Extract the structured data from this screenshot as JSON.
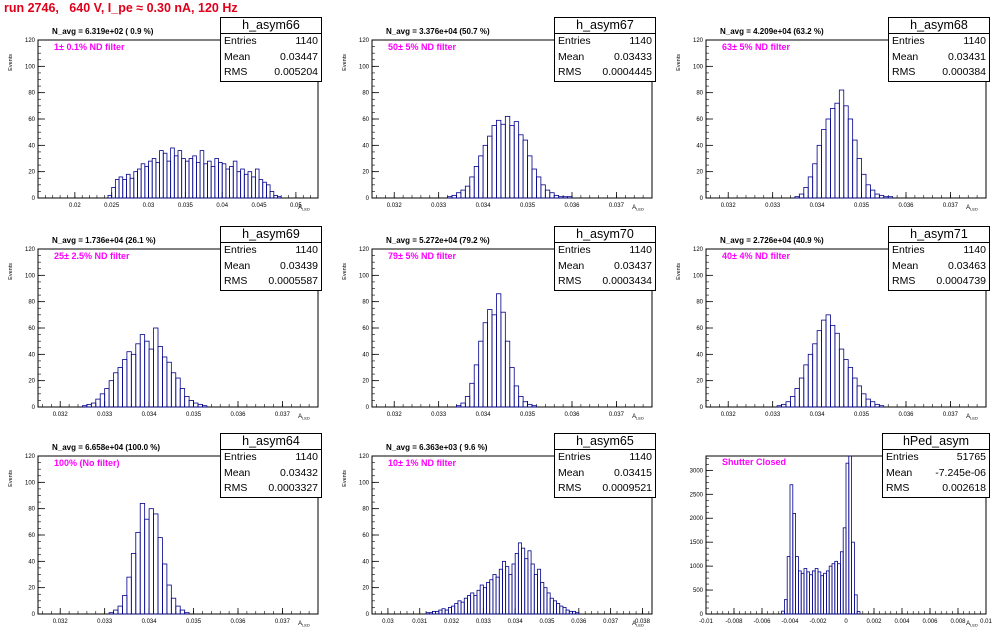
{
  "title": "run 2746,   640 V, I_pe ≈ 0.30 nA, 120 Hz",
  "colors": {
    "title": "#e0001a",
    "histogram": "#00008b",
    "annotation": "#ff00ff",
    "axis": "#000000"
  },
  "stats_labels": {
    "entries": "Entries",
    "mean": "Mean",
    "rms": "RMS"
  },
  "ylabel": "Events",
  "chart_data": [
    {
      "type": "histogram",
      "name": "h_asym66",
      "xlabel": "A_{LED}",
      "ylabel": "Events",
      "xlim": [
        0.015,
        0.053
      ],
      "ylim": [
        0,
        120
      ],
      "xticks": [
        0.02,
        0.025,
        0.03,
        0.035,
        0.04,
        0.045,
        0.05
      ],
      "xtick_labels": [
        "0.02",
        "0.025",
        "0.03",
        "0.035",
        "0.04",
        "0.045",
        "0.05"
      ],
      "yticks": [
        0,
        20,
        40,
        60,
        80,
        100,
        120
      ],
      "navg": "N_avg = 6.319e+02 ( 0.9 %)",
      "filter": "1± 0.1% ND filter",
      "stats": {
        "entries": "1140",
        "mean": "0.03447",
        "rms": "0.005204"
      },
      "bin_start": 0.0245,
      "bin_width": 0.0005,
      "counts": [
        2,
        8,
        14,
        16,
        14,
        18,
        15,
        20,
        22,
        26,
        24,
        28,
        30,
        27,
        36,
        34,
        28,
        38,
        32,
        36,
        30,
        28,
        30,
        32,
        27,
        36,
        26,
        28,
        24,
        30,
        27,
        26,
        22,
        24,
        28,
        20,
        22,
        18,
        20,
        16,
        22,
        14,
        12,
        10,
        5,
        2,
        1
      ]
    },
    {
      "type": "histogram",
      "name": "h_asym67",
      "xlabel": "A_{LED}",
      "ylabel": "Events",
      "xlim": [
        0.0315,
        0.0378
      ],
      "ylim": [
        0,
        120
      ],
      "xticks": [
        0.032,
        0.033,
        0.034,
        0.035,
        0.036,
        0.037
      ],
      "xtick_labels": [
        "0.032",
        "0.033",
        "0.034",
        "0.035",
        "0.036",
        "0.037"
      ],
      "yticks": [
        0,
        20,
        40,
        60,
        80,
        100,
        120
      ],
      "navg": "N_avg = 3.376e+04 (50.7 %)",
      "filter": "50± 5% ND filter",
      "stats": {
        "entries": "1140",
        "mean": "0.03433",
        "rms": "0.0004445"
      },
      "bin_start": 0.0332,
      "bin_width": 0.0001,
      "counts": [
        1,
        2,
        4,
        6,
        9,
        16,
        24,
        32,
        40,
        47,
        55,
        59,
        56,
        62,
        55,
        58,
        48,
        44,
        32,
        22,
        16,
        10,
        6,
        4,
        2,
        1,
        1,
        1
      ]
    },
    {
      "type": "histogram",
      "name": "h_asym68",
      "xlabel": "A_{LED}",
      "ylabel": "Events",
      "xlim": [
        0.0315,
        0.0378
      ],
      "ylim": [
        0,
        120
      ],
      "xticks": [
        0.032,
        0.033,
        0.034,
        0.035,
        0.036,
        0.037
      ],
      "xtick_labels": [
        "0.032",
        "0.033",
        "0.034",
        "0.035",
        "0.036",
        "0.037"
      ],
      "yticks": [
        0,
        20,
        40,
        60,
        80,
        100,
        120
      ],
      "navg": "N_avg = 4.209e+04 (63.2 %)",
      "filter": "63± 5% ND filter",
      "stats": {
        "entries": "1140",
        "mean": "0.03431",
        "rms": "0.000384"
      },
      "bin_start": 0.0335,
      "bin_width": 0.0001,
      "counts": [
        1,
        3,
        8,
        16,
        26,
        40,
        52,
        60,
        68,
        72,
        82,
        70,
        60,
        44,
        30,
        18,
        10,
        6,
        3,
        2,
        1,
        1
      ]
    },
    {
      "type": "histogram",
      "name": "h_asym69",
      "xlabel": "A_{LED}",
      "ylabel": "Events",
      "xlim": [
        0.0315,
        0.0378
      ],
      "ylim": [
        0,
        120
      ],
      "xticks": [
        0.032,
        0.033,
        0.034,
        0.035,
        0.036,
        0.037
      ],
      "xtick_labels": [
        "0.032",
        "0.033",
        "0.034",
        "0.035",
        "0.036",
        "0.037"
      ],
      "yticks": [
        0,
        20,
        40,
        60,
        80,
        100,
        120
      ],
      "navg": "N_avg = 1.736e+04 (26.1 %)",
      "filter": "25± 2.5% ND filter",
      "stats": {
        "entries": "1140",
        "mean": "0.03439",
        "rms": "0.0005587"
      },
      "bin_start": 0.0325,
      "bin_width": 0.0001,
      "counts": [
        1,
        2,
        3,
        6,
        10,
        14,
        20,
        26,
        30,
        36,
        42,
        40,
        48,
        55,
        50,
        44,
        60,
        46,
        38,
        34,
        26,
        22,
        14,
        8,
        5,
        3,
        2,
        1
      ]
    },
    {
      "type": "histogram",
      "name": "h_asym70",
      "xlabel": "A_{LED}",
      "ylabel": "Events",
      "xlim": [
        0.0315,
        0.0378
      ],
      "ylim": [
        0,
        120
      ],
      "xticks": [
        0.032,
        0.033,
        0.034,
        0.035,
        0.036,
        0.037
      ],
      "xtick_labels": [
        "0.032",
        "0.033",
        "0.034",
        "0.035",
        "0.036",
        "0.037"
      ],
      "yticks": [
        0,
        20,
        40,
        60,
        80,
        100,
        120
      ],
      "navg": "N_avg = 5.272e+04 (79.2 %)",
      "filter": "79± 5% ND filter",
      "stats": {
        "entries": "1140",
        "mean": "0.03437",
        "rms": "0.0003434"
      },
      "bin_start": 0.0334,
      "bin_width": 0.0001,
      "counts": [
        1,
        3,
        8,
        18,
        32,
        50,
        64,
        74,
        70,
        86,
        72,
        50,
        30,
        16,
        8,
        4,
        2,
        1
      ]
    },
    {
      "type": "histogram",
      "name": "h_asym71",
      "xlabel": "A_{LED}",
      "ylabel": "Events",
      "xlim": [
        0.0315,
        0.0378
      ],
      "ylim": [
        0,
        120
      ],
      "xticks": [
        0.032,
        0.033,
        0.034,
        0.035,
        0.036,
        0.037
      ],
      "xtick_labels": [
        "0.032",
        "0.033",
        "0.034",
        "0.035",
        "0.036",
        "0.037"
      ],
      "yticks": [
        0,
        20,
        40,
        60,
        80,
        100,
        120
      ],
      "navg": "N_avg = 2.726e+04 (40.9 %)",
      "filter": "40± 4% ND filter",
      "stats": {
        "entries": "1140",
        "mean": "0.03463",
        "rms": "0.0004739"
      },
      "bin_start": 0.0331,
      "bin_width": 0.0001,
      "counts": [
        1,
        2,
        4,
        8,
        14,
        22,
        32,
        40,
        48,
        58,
        66,
        70,
        62,
        56,
        44,
        36,
        30,
        22,
        16,
        10,
        6,
        4,
        2,
        1
      ]
    },
    {
      "type": "histogram",
      "name": "h_asym64",
      "xlabel": "A_{LED}",
      "ylabel": "Events",
      "xlim": [
        0.0315,
        0.0378
      ],
      "ylim": [
        0,
        120
      ],
      "xticks": [
        0.032,
        0.033,
        0.034,
        0.035,
        0.036,
        0.037
      ],
      "xtick_labels": [
        "0.032",
        "0.033",
        "0.034",
        "0.035",
        "0.036",
        "0.037"
      ],
      "yticks": [
        0,
        20,
        40,
        60,
        80,
        100,
        120
      ],
      "navg": "N_avg = 6.658e+04 (100.0 %)",
      "filter": "100% (No filter)",
      "stats": {
        "entries": "1140",
        "mean": "0.03432",
        "rms": "0.0003327"
      },
      "bin_start": 0.0331,
      "bin_width": 0.0001,
      "counts": [
        1,
        3,
        6,
        14,
        28,
        46,
        62,
        84,
        72,
        80,
        76,
        58,
        38,
        22,
        12,
        6,
        3,
        1
      ]
    },
    {
      "type": "histogram",
      "name": "h_asym65",
      "xlabel": "A_{LED}",
      "ylabel": "Events",
      "xlim": [
        0.0295,
        0.0383
      ],
      "ylim": [
        0,
        120
      ],
      "xticks": [
        0.03,
        0.031,
        0.032,
        0.033,
        0.034,
        0.035,
        0.036,
        0.037,
        0.038
      ],
      "xtick_labels": [
        "0.03",
        "0.031",
        "0.032",
        "0.033",
        "0.034",
        "0.035",
        "0.036",
        "0.037",
        "0.038"
      ],
      "yticks": [
        0,
        20,
        40,
        60,
        80,
        100,
        120
      ],
      "navg": "N_avg = 6.363e+03 ( 9.6 %)",
      "filter": "10± 1% ND filter",
      "stats": {
        "entries": "1140",
        "mean": "0.03415",
        "rms": "0.0009521"
      },
      "bin_start": 0.0312,
      "bin_width": 0.0001,
      "counts": [
        1,
        1,
        2,
        2,
        3,
        4,
        3,
        5,
        6,
        8,
        10,
        9,
        12,
        14,
        16,
        14,
        18,
        22,
        20,
        24,
        26,
        30,
        28,
        34,
        40,
        36,
        30,
        38,
        46,
        54,
        50,
        42,
        48,
        38,
        30,
        34,
        24,
        20,
        16,
        12,
        10,
        8,
        6,
        5,
        3,
        2,
        2,
        1
      ]
    },
    {
      "type": "histogram",
      "name": "hPed_asym",
      "xlabel": "A_{LED}",
      "ylabel": "",
      "xlim": [
        -0.01,
        0.01
      ],
      "ylim": [
        0,
        3300
      ],
      "xticks": [
        -0.01,
        -0.008,
        -0.006,
        -0.004,
        -0.002,
        0,
        0.002,
        0.004,
        0.006,
        0.008,
        0.01
      ],
      "xtick_labels": [
        "-0.01",
        "-0.008",
        "-0.006",
        "-0.004",
        "-0.002",
        "0",
        "0.002",
        "0.004",
        "0.006",
        "0.008",
        "0.01"
      ],
      "yticks": [
        0,
        500,
        1000,
        1500,
        2000,
        2500,
        3000
      ],
      "navg": "",
      "filter": "Shutter Closed",
      "stats": {
        "entries": "51765",
        "mean": "-7.245e-06",
        "rms": "0.002618"
      },
      "bin_start": -0.0046,
      "bin_width": 0.0002,
      "counts": [
        60,
        300,
        1200,
        2700,
        2100,
        1200,
        900,
        850,
        950,
        880,
        820,
        900,
        950,
        880,
        800,
        850,
        900,
        1000,
        1050,
        1100,
        1050,
        1300,
        1800,
        3150,
        3300,
        1500,
        400,
        50
      ]
    }
  ]
}
